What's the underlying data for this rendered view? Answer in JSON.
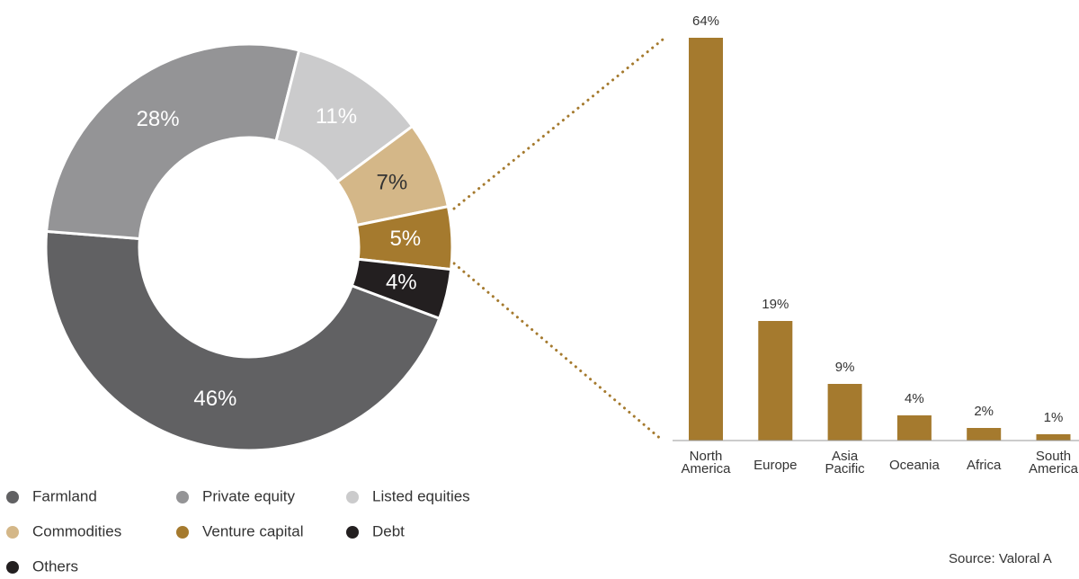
{
  "chart_data": [
    {
      "type": "donut",
      "categories": [
        "Farmland",
        "Private equity",
        "Listed equities",
        "Commodities",
        "Venture capital",
        "Debt",
        "Others"
      ],
      "values": [
        46,
        28,
        11,
        7,
        5,
        4,
        null
      ],
      "value_labels": [
        "46%",
        "28%",
        "11%",
        "7%",
        "5%",
        "4%",
        null
      ],
      "colors": [
        "#616163",
        "#949496",
        "#cbcbcc",
        "#d4b788",
        "#a57a2e",
        "#231f20",
        "#231f20"
      ]
    },
    {
      "type": "bar",
      "categories": [
        "North America",
        "Europe",
        "Asia Pacific",
        "Oceania",
        "Africa",
        "South America"
      ],
      "values": [
        64,
        19,
        9,
        4,
        2,
        1
      ],
      "value_labels": [
        "64%",
        "19%",
        "9%",
        "4%",
        "2%",
        "1%"
      ],
      "color": "#a57a2e",
      "ylim": [
        0,
        64
      ]
    },
    {
      "type": "note",
      "source": "Source: Valoral A"
    }
  ]
}
